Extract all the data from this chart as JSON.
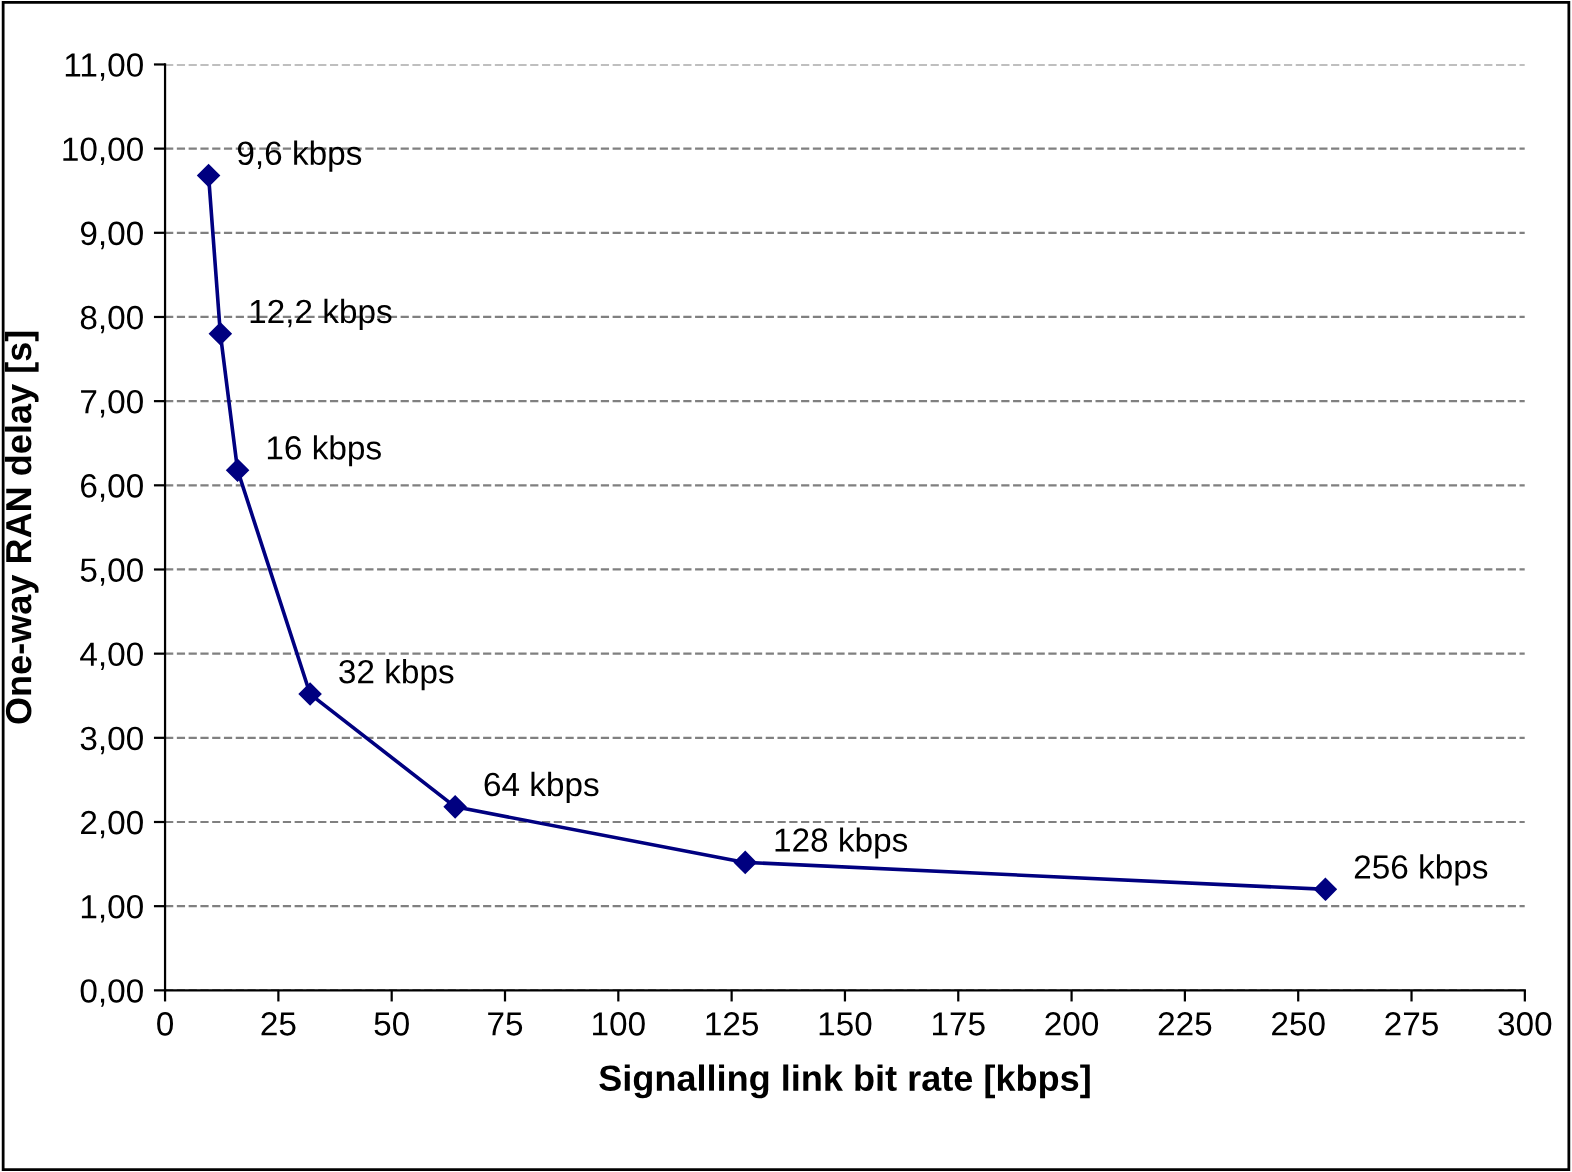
{
  "chart_data": {
    "type": "line",
    "xlabel": "Signalling link bit rate [kbps]",
    "ylabel": "One-way RAN delay [s]",
    "x": [
      9.6,
      12.2,
      16,
      32,
      64,
      128,
      256
    ],
    "series": [
      {
        "color": "#000080",
        "values": [
          9.68,
          7.8,
          6.18,
          3.52,
          2.18,
          1.52,
          1.2
        ]
      }
    ],
    "marker": "diamond",
    "line_style": "solid",
    "grid": "y",
    "legend": false,
    "xlim": [
      0,
      300
    ],
    "xticks": [
      0,
      25,
      50,
      75,
      100,
      125,
      150,
      175,
      200,
      225,
      250,
      275,
      300
    ],
    "ylim": [
      0,
      11
    ],
    "yticks": [
      {
        "value": 0,
        "label": "0,00"
      },
      {
        "value": 1,
        "label": "1,00"
      },
      {
        "value": 2,
        "label": "2,00"
      },
      {
        "value": 3,
        "label": "3,00"
      },
      {
        "value": 4,
        "label": "4,00"
      },
      {
        "value": 5,
        "label": "5,00"
      },
      {
        "value": 6,
        "label": "6,00"
      },
      {
        "value": 7,
        "label": "7,00"
      },
      {
        "value": 8,
        "label": "8,00"
      },
      {
        "value": 9,
        "label": "9,00"
      },
      {
        "value": 10,
        "label": "10,00"
      },
      {
        "value": 11,
        "label": "11,00"
      }
    ],
    "annotations": [
      {
        "text": "9,6 kbps",
        "x": 9.6,
        "y": 9.68
      },
      {
        "text": "12,2 kbps",
        "x": 12.2,
        "y": 7.8
      },
      {
        "text": "16 kbps",
        "x": 16,
        "y": 6.18
      },
      {
        "text": "32 kbps",
        "x": 32,
        "y": 3.52
      },
      {
        "text": "64 kbps",
        "x": 64,
        "y": 2.18
      },
      {
        "text": "128 kbps",
        "x": 128,
        "y": 1.52
      },
      {
        "text": "256 kbps",
        "x": 256,
        "y": 1.2
      }
    ]
  }
}
